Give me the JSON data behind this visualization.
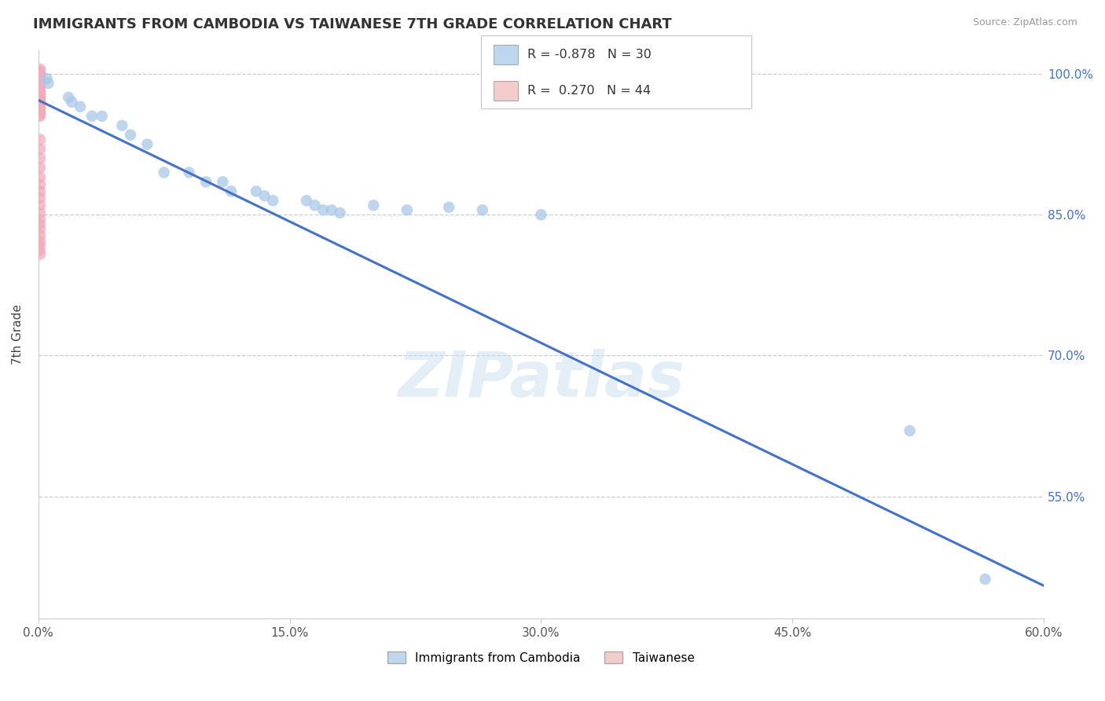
{
  "title": "IMMIGRANTS FROM CAMBODIA VS TAIWANESE 7TH GRADE CORRELATION CHART",
  "source_text": "Source: ZipAtlas.com",
  "ylabel_text": "7th Grade",
  "xlim": [
    0.0,
    0.6
  ],
  "ylim": [
    0.42,
    1.025
  ],
  "xtick_labels": [
    "0.0%",
    "15.0%",
    "30.0%",
    "45.0%",
    "60.0%"
  ],
  "xtick_values": [
    0.0,
    0.15,
    0.3,
    0.45,
    0.6
  ],
  "ytick_labels": [
    "55.0%",
    "70.0%",
    "85.0%",
    "100.0%"
  ],
  "ytick_values": [
    0.55,
    0.7,
    0.85,
    1.0
  ],
  "blue_color": "#A8C8E8",
  "pink_color": "#F4AABB",
  "line_color": "#4472C4",
  "legend_blue_fill": "#BDD7EE",
  "legend_pink_fill": "#F4CCCC",
  "R_blue": "-0.878",
  "N_blue": "30",
  "R_pink": "0.270",
  "N_pink": "44",
  "watermark": "ZIPatlas",
  "legend_label_blue": "Immigrants from Cambodia",
  "legend_label_pink": "Taiwanese",
  "blue_scatter_x": [
    0.005,
    0.006,
    0.018,
    0.02,
    0.025,
    0.032,
    0.038,
    0.05,
    0.055,
    0.065,
    0.075,
    0.09,
    0.1,
    0.11,
    0.115,
    0.13,
    0.135,
    0.14,
    0.16,
    0.165,
    0.17,
    0.175,
    0.18,
    0.2,
    0.22,
    0.245,
    0.265,
    0.3,
    0.52,
    0.565
  ],
  "blue_scatter_y": [
    0.995,
    0.99,
    0.975,
    0.97,
    0.965,
    0.955,
    0.955,
    0.945,
    0.935,
    0.925,
    0.895,
    0.895,
    0.885,
    0.885,
    0.875,
    0.875,
    0.87,
    0.865,
    0.865,
    0.86,
    0.855,
    0.855,
    0.852,
    0.86,
    0.855,
    0.858,
    0.855,
    0.85,
    0.62,
    0.462
  ],
  "pink_scatter_x": [
    0.001,
    0.001,
    0.001,
    0.001,
    0.001,
    0.001,
    0.001,
    0.001,
    0.001,
    0.001,
    0.001,
    0.001,
    0.001,
    0.001,
    0.001,
    0.001,
    0.001,
    0.001,
    0.001,
    0.001,
    0.001,
    0.001,
    0.001,
    0.001,
    0.001,
    0.001,
    0.001,
    0.001,
    0.001,
    0.001,
    0.001,
    0.001,
    0.001,
    0.001,
    0.001,
    0.001,
    0.001,
    0.001,
    0.001,
    0.001,
    0.001,
    0.001,
    0.001,
    0.001
  ],
  "pink_scatter_y": [
    1.005,
    1.003,
    1.001,
    0.999,
    0.997,
    0.995,
    0.993,
    0.991,
    0.989,
    0.987,
    0.985,
    0.983,
    0.981,
    0.979,
    0.977,
    0.975,
    0.973,
    0.971,
    0.969,
    0.967,
    0.965,
    0.963,
    0.961,
    0.959,
    0.957,
    0.955,
    0.93,
    0.92,
    0.91,
    0.9,
    0.89,
    0.882,
    0.875,
    0.868,
    0.86,
    0.852,
    0.845,
    0.84,
    0.835,
    0.828,
    0.822,
    0.818,
    0.812,
    0.808
  ],
  "trendline_x": [
    0.0,
    0.6
  ],
  "trendline_y": [
    0.972,
    0.455
  ]
}
